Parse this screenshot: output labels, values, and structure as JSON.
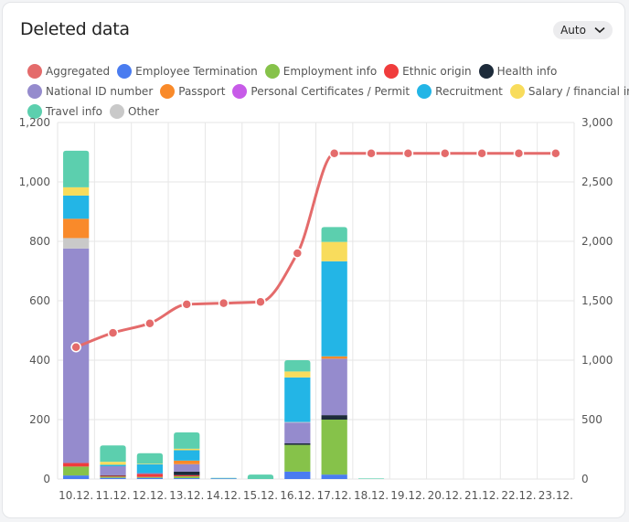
{
  "header": {
    "title": "Deleted data",
    "dropdown_label": "Auto"
  },
  "colors": {
    "Aggregated": "#e46b6b",
    "Employee Termination": "#4a7cf0",
    "Employment info": "#86c24a",
    "Ethnic origin": "#f03c3c",
    "Health info": "#1d2b3a",
    "National ID number": "#958bcd",
    "Passport": "#f98a2a",
    "Personal Certificates / Permit": "#c75be8",
    "Recruitment": "#23b5e6",
    "Salary / financial info": "#f8dc5c",
    "Travel info": "#5ccfae",
    "Other": "#c9c9c9"
  },
  "legend_rows": [
    [
      "Aggregated",
      "Employee Termination",
      "Employment info",
      "Ethnic origin",
      "Health info"
    ],
    [
      "National ID number",
      "Passport",
      "Personal Certificates / Permit",
      "Recruitment",
      "Salary / financial info"
    ],
    [
      "Travel info",
      "Other"
    ]
  ],
  "chart_data": {
    "type": "bar",
    "stacked": true,
    "categories": [
      "10.12.",
      "11.12.",
      "12.12.",
      "13.12.",
      "14.12.",
      "15.12.",
      "16.12.",
      "17.12.",
      "18.12.",
      "19.12.",
      "20.12.",
      "21.12.",
      "22.12.",
      "23.12."
    ],
    "y_left": {
      "min": 0,
      "max": 1200,
      "ticks": [
        "0",
        "200",
        "400",
        "600",
        "800",
        "1,000",
        "1,200"
      ],
      "tick_values": [
        0,
        200,
        400,
        600,
        800,
        1000,
        1200
      ]
    },
    "y_right": {
      "min": 0,
      "max": 3000,
      "ticks": [
        "0",
        "500",
        "1,000",
        "1,500",
        "2,000",
        "2,500",
        "3,000"
      ],
      "tick_values": [
        0,
        500,
        1000,
        1500,
        2000,
        2500,
        3000
      ]
    },
    "grid": true,
    "legend_position": "top",
    "series": [
      {
        "name": "Employee Termination",
        "values": [
          12,
          4,
          4,
          3,
          2,
          0,
          25,
          15,
          0,
          0,
          0,
          0,
          0,
          0
        ]
      },
      {
        "name": "Employment info",
        "values": [
          30,
          4,
          3,
          6,
          0,
          0,
          90,
          185,
          0,
          0,
          0,
          0,
          0,
          0
        ]
      },
      {
        "name": "Ethnic origin",
        "values": [
          12,
          3,
          10,
          4,
          0,
          0,
          0,
          0,
          0,
          0,
          0,
          0,
          0,
          0
        ]
      },
      {
        "name": "Health info",
        "values": [
          0,
          2,
          0,
          12,
          0,
          0,
          5,
          15,
          0,
          0,
          0,
          0,
          0,
          0
        ]
      },
      {
        "name": "National ID number",
        "values": [
          722,
          30,
          3,
          25,
          0,
          0,
          70,
          190,
          0,
          0,
          0,
          0,
          0,
          0
        ]
      },
      {
        "name": "Other",
        "values": [
          35,
          0,
          0,
          0,
          0,
          0,
          2,
          0,
          0,
          0,
          0,
          0,
          0,
          0
        ]
      },
      {
        "name": "Passport",
        "values": [
          65,
          0,
          0,
          12,
          0,
          0,
          0,
          8,
          0,
          0,
          0,
          0,
          0,
          0
        ]
      },
      {
        "name": "Personal Certificates / Permit",
        "values": [
          0,
          0,
          0,
          0,
          0,
          0,
          0,
          0,
          0,
          0,
          0,
          0,
          0,
          0
        ]
      },
      {
        "name": "Recruitment",
        "values": [
          78,
          5,
          30,
          35,
          0,
          0,
          150,
          320,
          0,
          0,
          0,
          0,
          0,
          0
        ]
      },
      {
        "name": "Salary / financial info",
        "values": [
          28,
          10,
          2,
          5,
          0,
          0,
          20,
          65,
          0,
          0,
          0,
          0,
          0,
          0
        ]
      },
      {
        "name": "Travel info",
        "values": [
          123,
          55,
          35,
          55,
          2,
          15,
          38,
          50,
          2,
          0,
          0,
          0,
          0,
          0
        ]
      }
    ],
    "line_series": {
      "name": "Aggregated",
      "axis": "right",
      "values": [
        1110,
        1230,
        1310,
        1470,
        1480,
        1490,
        1900,
        2740,
        2740,
        2740,
        2740,
        2740,
        2740,
        2740
      ]
    }
  }
}
